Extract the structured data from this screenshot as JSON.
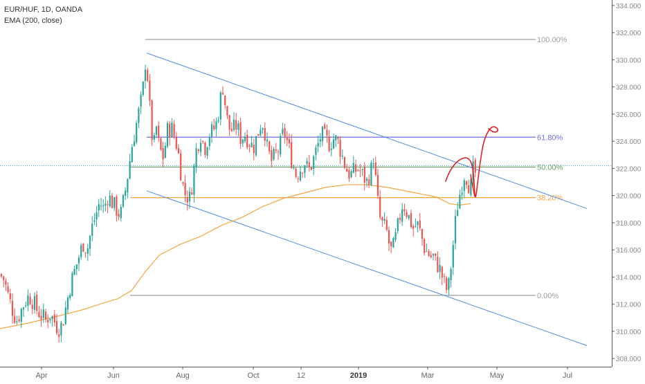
{
  "symbol": "EUR/HUF, 1D, OANDA",
  "indicator": "EMA (200, close)",
  "colors": {
    "up": "#26a69a",
    "down": "#ef5350",
    "ema": "#f7a540",
    "channel": "#4a90e2",
    "fib_100": "#9e9e9e",
    "fib_618": "#6f6fe0",
    "fib_50": "#5e9d5e",
    "fib_382": "#f7a540",
    "fib_0": "#9e9e9e",
    "price_line": "#56a6c9",
    "drawing": "#e02020"
  },
  "chart_data": {
    "type": "candlestick",
    "title": "EUR/HUF, 1D, OANDA",
    "series": [
      {
        "name": "EMA (200, close)"
      }
    ],
    "x_tick_labels": [
      "Apr",
      "Jun",
      "Aug",
      "Oct",
      "12",
      "2019",
      "Mar",
      "May",
      "Jul"
    ],
    "y_tick_labels": [
      "308.000",
      "310.000",
      "312.000",
      "314.000",
      "316.000",
      "318.000",
      "320.000",
      "322.000",
      "324.000",
      "326.000",
      "328.000",
      "330.000",
      "332.000",
      "334.000"
    ],
    "ylim": [
      307.6,
      334.2
    ],
    "fibonacci": [
      {
        "label": "100.00%",
        "price": 331.5
      },
      {
        "label": "61.80%",
        "price": 324.3
      },
      {
        "label": "50.00%",
        "price": 322.1
      },
      {
        "label": "38.20%",
        "price": 319.85
      },
      {
        "label": "0.00%",
        "price": 312.65
      }
    ],
    "current_price": 322.2,
    "close_path": [
      [
        0,
        314.2
      ],
      [
        6,
        313.8
      ],
      [
        12,
        312.6
      ],
      [
        18,
        311.6
      ],
      [
        24,
        310.8
      ],
      [
        30,
        311.5
      ],
      [
        36,
        312.2
      ],
      [
        42,
        312.6
      ],
      [
        48,
        312.2
      ],
      [
        54,
        311.5
      ],
      [
        60,
        311.2
      ],
      [
        66,
        310.8
      ],
      [
        72,
        311.3
      ],
      [
        78,
        310.8
      ],
      [
        84,
        310.2
      ],
      [
        90,
        310.5
      ],
      [
        96,
        312.0
      ],
      [
        102,
        313.5
      ],
      [
        108,
        314.5
      ],
      [
        114,
        315.5
      ],
      [
        120,
        316.5
      ],
      [
        126,
        316.0
      ],
      [
        132,
        317.5
      ],
      [
        138,
        318.5
      ],
      [
        144,
        319.5
      ],
      [
        150,
        319.0
      ],
      [
        156,
        320.0
      ],
      [
        162,
        319.5
      ],
      [
        168,
        319.0
      ],
      [
        174,
        318.5
      ],
      [
        180,
        320.0
      ],
      [
        186,
        322.0
      ],
      [
        190,
        323.5
      ],
      [
        194,
        324.5
      ],
      [
        198,
        325.5
      ],
      [
        202,
        326.5
      ],
      [
        206,
        327.5
      ],
      [
        210,
        329.8
      ],
      [
        214,
        328.5
      ],
      [
        218,
        325.0
      ],
      [
        222,
        323.5
      ],
      [
        226,
        325.0
      ],
      [
        230,
        323.5
      ],
      [
        236,
        322.8
      ],
      [
        242,
        324.8
      ],
      [
        248,
        325.0
      ],
      [
        254,
        324.0
      ],
      [
        258,
        323.0
      ],
      [
        262,
        321.5
      ],
      [
        266,
        320.2
      ],
      [
        270,
        320.0
      ],
      [
        274,
        319.8
      ],
      [
        278,
        321.0
      ],
      [
        284,
        323.5
      ],
      [
        290,
        324.5
      ],
      [
        296,
        323.5
      ],
      [
        302,
        324.5
      ],
      [
        308,
        324.8
      ],
      [
        314,
        325.5
      ],
      [
        318,
        327.0
      ],
      [
        322,
        328.0
      ],
      [
        326,
        326.5
      ],
      [
        330,
        325.0
      ],
      [
        336,
        324.8
      ],
      [
        342,
        325.2
      ],
      [
        348,
        324.2
      ],
      [
        354,
        324.5
      ],
      [
        360,
        324.0
      ],
      [
        366,
        323.5
      ],
      [
        372,
        324.5
      ],
      [
        378,
        325.5
      ],
      [
        382,
        325.0
      ],
      [
        386,
        323.5
      ],
      [
        392,
        322.5
      ],
      [
        398,
        323.0
      ],
      [
        404,
        323.5
      ],
      [
        410,
        324.8
      ],
      [
        416,
        323.8
      ],
      [
        422,
        322.5
      ],
      [
        428,
        321.5
      ],
      [
        434,
        322.0
      ],
      [
        440,
        322.5
      ],
      [
        446,
        321.8
      ],
      [
        452,
        322.5
      ],
      [
        458,
        323.5
      ],
      [
        464,
        324.5
      ],
      [
        470,
        324.2
      ],
      [
        476,
        323.8
      ],
      [
        482,
        324.2
      ],
      [
        488,
        324.0
      ],
      [
        494,
        323.0
      ],
      [
        500,
        322.0
      ],
      [
        506,
        321.5
      ],
      [
        512,
        321.8
      ],
      [
        518,
        322.0
      ],
      [
        524,
        321.5
      ],
      [
        530,
        321.0
      ],
      [
        536,
        321.8
      ],
      [
        540,
        323.0
      ],
      [
        543,
        321.0
      ],
      [
        546,
        319.5
      ],
      [
        550,
        318.0
      ],
      [
        554,
        317.8
      ],
      [
        558,
        317.5
      ],
      [
        562,
        316.5
      ],
      [
        566,
        315.8
      ],
      [
        570,
        316.5
      ],
      [
        574,
        317.5
      ],
      [
        578,
        318.5
      ],
      [
        582,
        319.5
      ],
      [
        586,
        319.0
      ],
      [
        590,
        318.5
      ],
      [
        594,
        318.0
      ],
      [
        598,
        317.5
      ],
      [
        602,
        318.0
      ],
      [
        606,
        317.5
      ],
      [
        610,
        316.8
      ],
      [
        614,
        316.0
      ],
      [
        618,
        315.8
      ],
      [
        622,
        315.5
      ],
      [
        626,
        315.5
      ],
      [
        630,
        315.0
      ],
      [
        634,
        314.8
      ],
      [
        638,
        314.2
      ],
      [
        642,
        313.5
      ],
      [
        646,
        313.0
      ],
      [
        648,
        313.2
      ],
      [
        652,
        315.0
      ],
      [
        656,
        317.0
      ],
      [
        660,
        319.0
      ],
      [
        664,
        320.0
      ],
      [
        668,
        321.0
      ],
      [
        672,
        321.8
      ],
      [
        676,
        321.0
      ],
      [
        680,
        320.5
      ],
      [
        684,
        322.0
      ],
      [
        688,
        321.5
      ]
    ]
  }
}
